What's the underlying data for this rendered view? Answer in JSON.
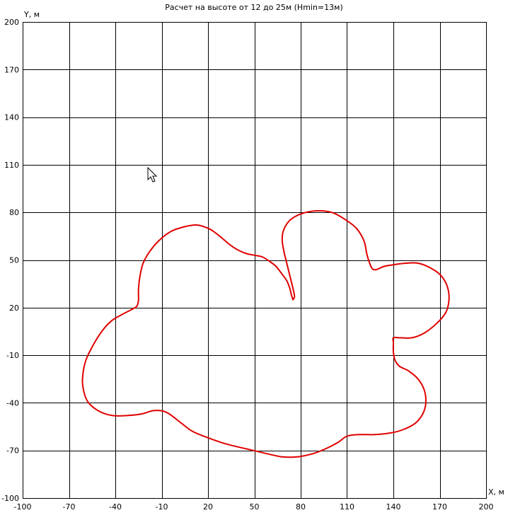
{
  "chart_data": {
    "type": "line",
    "title": "Расчет на высоте от 12 до 25м (Hmin=13м)",
    "xlabel": "X, м",
    "ylabel": "Y, м",
    "xlim": [
      -100,
      200
    ],
    "ylim": [
      -100,
      200
    ],
    "x_ticks": [
      -100,
      -70,
      -40,
      -10,
      20,
      50,
      80,
      110,
      140,
      170,
      200
    ],
    "y_ticks": [
      -100,
      -70,
      -40,
      -10,
      20,
      50,
      80,
      110,
      140,
      170,
      200
    ],
    "grid": true,
    "legend": "none",
    "series": [
      {
        "color": "#e00000",
        "closed": true,
        "points": [
          [
            75,
            25
          ],
          [
            74,
            28
          ],
          [
            73,
            32
          ],
          [
            71,
            37
          ],
          [
            68,
            41
          ],
          [
            64,
            46
          ],
          [
            60,
            49
          ],
          [
            55,
            52
          ],
          [
            50,
            53
          ],
          [
            45,
            54
          ],
          [
            40,
            56
          ],
          [
            35,
            59
          ],
          [
            30,
            63
          ],
          [
            25,
            67
          ],
          [
            20,
            70
          ],
          [
            13,
            72
          ],
          [
            5,
            71
          ],
          [
            -4,
            68
          ],
          [
            -12,
            62
          ],
          [
            -18,
            55
          ],
          [
            -22,
            48
          ],
          [
            -24,
            40
          ],
          [
            -25,
            32
          ],
          [
            -25,
            25
          ],
          [
            -26,
            21
          ],
          [
            -29,
            19
          ],
          [
            -35,
            16
          ],
          [
            -42,
            12
          ],
          [
            -48,
            6
          ],
          [
            -54,
            -3
          ],
          [
            -59,
            -13
          ],
          [
            -61,
            -22
          ],
          [
            -61,
            -30
          ],
          [
            -58,
            -39
          ],
          [
            -51,
            -45
          ],
          [
            -42,
            -48
          ],
          [
            -32,
            -48
          ],
          [
            -23,
            -47
          ],
          [
            -16,
            -45
          ],
          [
            -10,
            -45
          ],
          [
            -5,
            -47
          ],
          [
            3,
            -53
          ],
          [
            10,
            -58
          ],
          [
            20,
            -62
          ],
          [
            32,
            -66
          ],
          [
            45,
            -69
          ],
          [
            58,
            -72
          ],
          [
            68,
            -74
          ],
          [
            78,
            -74
          ],
          [
            88,
            -72
          ],
          [
            96,
            -69
          ],
          [
            104,
            -65
          ],
          [
            110,
            -61
          ],
          [
            118,
            -60
          ],
          [
            128,
            -60
          ],
          [
            138,
            -59
          ],
          [
            146,
            -57
          ],
          [
            154,
            -53
          ],
          [
            159,
            -47
          ],
          [
            161,
            -40
          ],
          [
            160,
            -32
          ],
          [
            156,
            -25
          ],
          [
            150,
            -20
          ],
          [
            144,
            -17
          ],
          [
            141,
            -13
          ],
          [
            140,
            -8
          ],
          [
            140,
            -2
          ],
          [
            140,
            1
          ],
          [
            144,
            1
          ],
          [
            152,
            1
          ],
          [
            160,
            4
          ],
          [
            168,
            10
          ],
          [
            174,
            17
          ],
          [
            176,
            25
          ],
          [
            175,
            33
          ],
          [
            171,
            40
          ],
          [
            164,
            45
          ],
          [
            156,
            48
          ],
          [
            148,
            48
          ],
          [
            140,
            47
          ],
          [
            134,
            46
          ],
          [
            129,
            44
          ],
          [
            126,
            45
          ],
          [
            123,
            53
          ],
          [
            121,
            62
          ],
          [
            116,
            70
          ],
          [
            108,
            76
          ],
          [
            100,
            80
          ],
          [
            90,
            81
          ],
          [
            80,
            79
          ],
          [
            73,
            75
          ],
          [
            69,
            69
          ],
          [
            68,
            63
          ],
          [
            69,
            56
          ],
          [
            71,
            48
          ],
          [
            73,
            40
          ],
          [
            75,
            32
          ],
          [
            76,
            27
          ],
          [
            75,
            25
          ]
        ]
      }
    ]
  }
}
